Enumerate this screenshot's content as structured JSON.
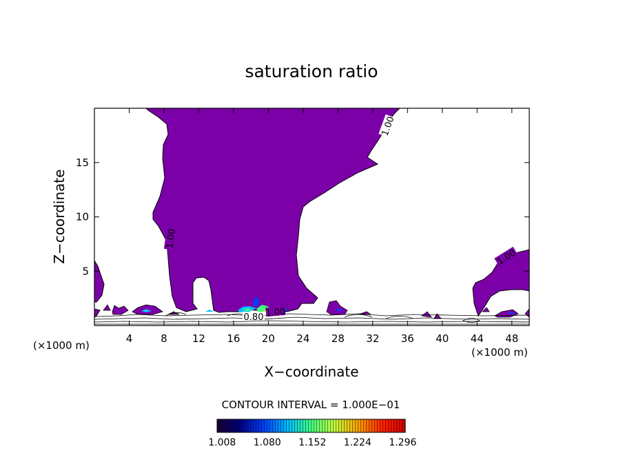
{
  "chart_data": {
    "type": "contour",
    "title": "saturation ratio",
    "xlabel": "X−coordinate",
    "ylabel": "Z−coordinate",
    "x_unit_left": "(×1000 m)",
    "x_unit_right": "(×1000 m)",
    "xlim": [
      0,
      50
    ],
    "ylim": [
      0,
      20
    ],
    "x_ticks": [
      4,
      8,
      12,
      16,
      20,
      24,
      28,
      32,
      36,
      40,
      44,
      48
    ],
    "x_tick_labels": [
      "4",
      "8",
      "12",
      "16",
      "20",
      "24",
      "28",
      "32",
      "36",
      "40",
      "44",
      "48"
    ],
    "y_ticks": [
      5,
      10,
      15
    ],
    "y_tick_labels": [
      "5",
      "10",
      "15"
    ],
    "contour_labels": [
      {
        "text": "1.00",
        "x": 34.0,
        "y": 18.5
      },
      {
        "text": "1.00",
        "x": 8.5,
        "y": 7.6
      },
      {
        "text": "1.00",
        "x": 47.0,
        "y": 6.4
      },
      {
        "text": "0.80",
        "x": 18.5,
        "y": 0.6
      },
      {
        "text": "1.00",
        "x": 21.0,
        "y": 1.0
      }
    ],
    "contour_interval_text": "CONTOUR INTERVAL = 1.000E−01",
    "colorbar": {
      "tick_labels": [
        "1.008",
        "1.080",
        "1.152",
        "1.224",
        "1.296"
      ],
      "tick_values": [
        1.008,
        1.08,
        1.152,
        1.224,
        1.296
      ],
      "range": [
        1.0,
        1.3
      ]
    },
    "fill_color": "#7b00a8",
    "colormap": [
      "#1a0030",
      "#000080",
      "#0040ff",
      "#00c0ff",
      "#40ff80",
      "#c0ff40",
      "#ffa000",
      "#ff2000",
      "#d00000"
    ]
  }
}
